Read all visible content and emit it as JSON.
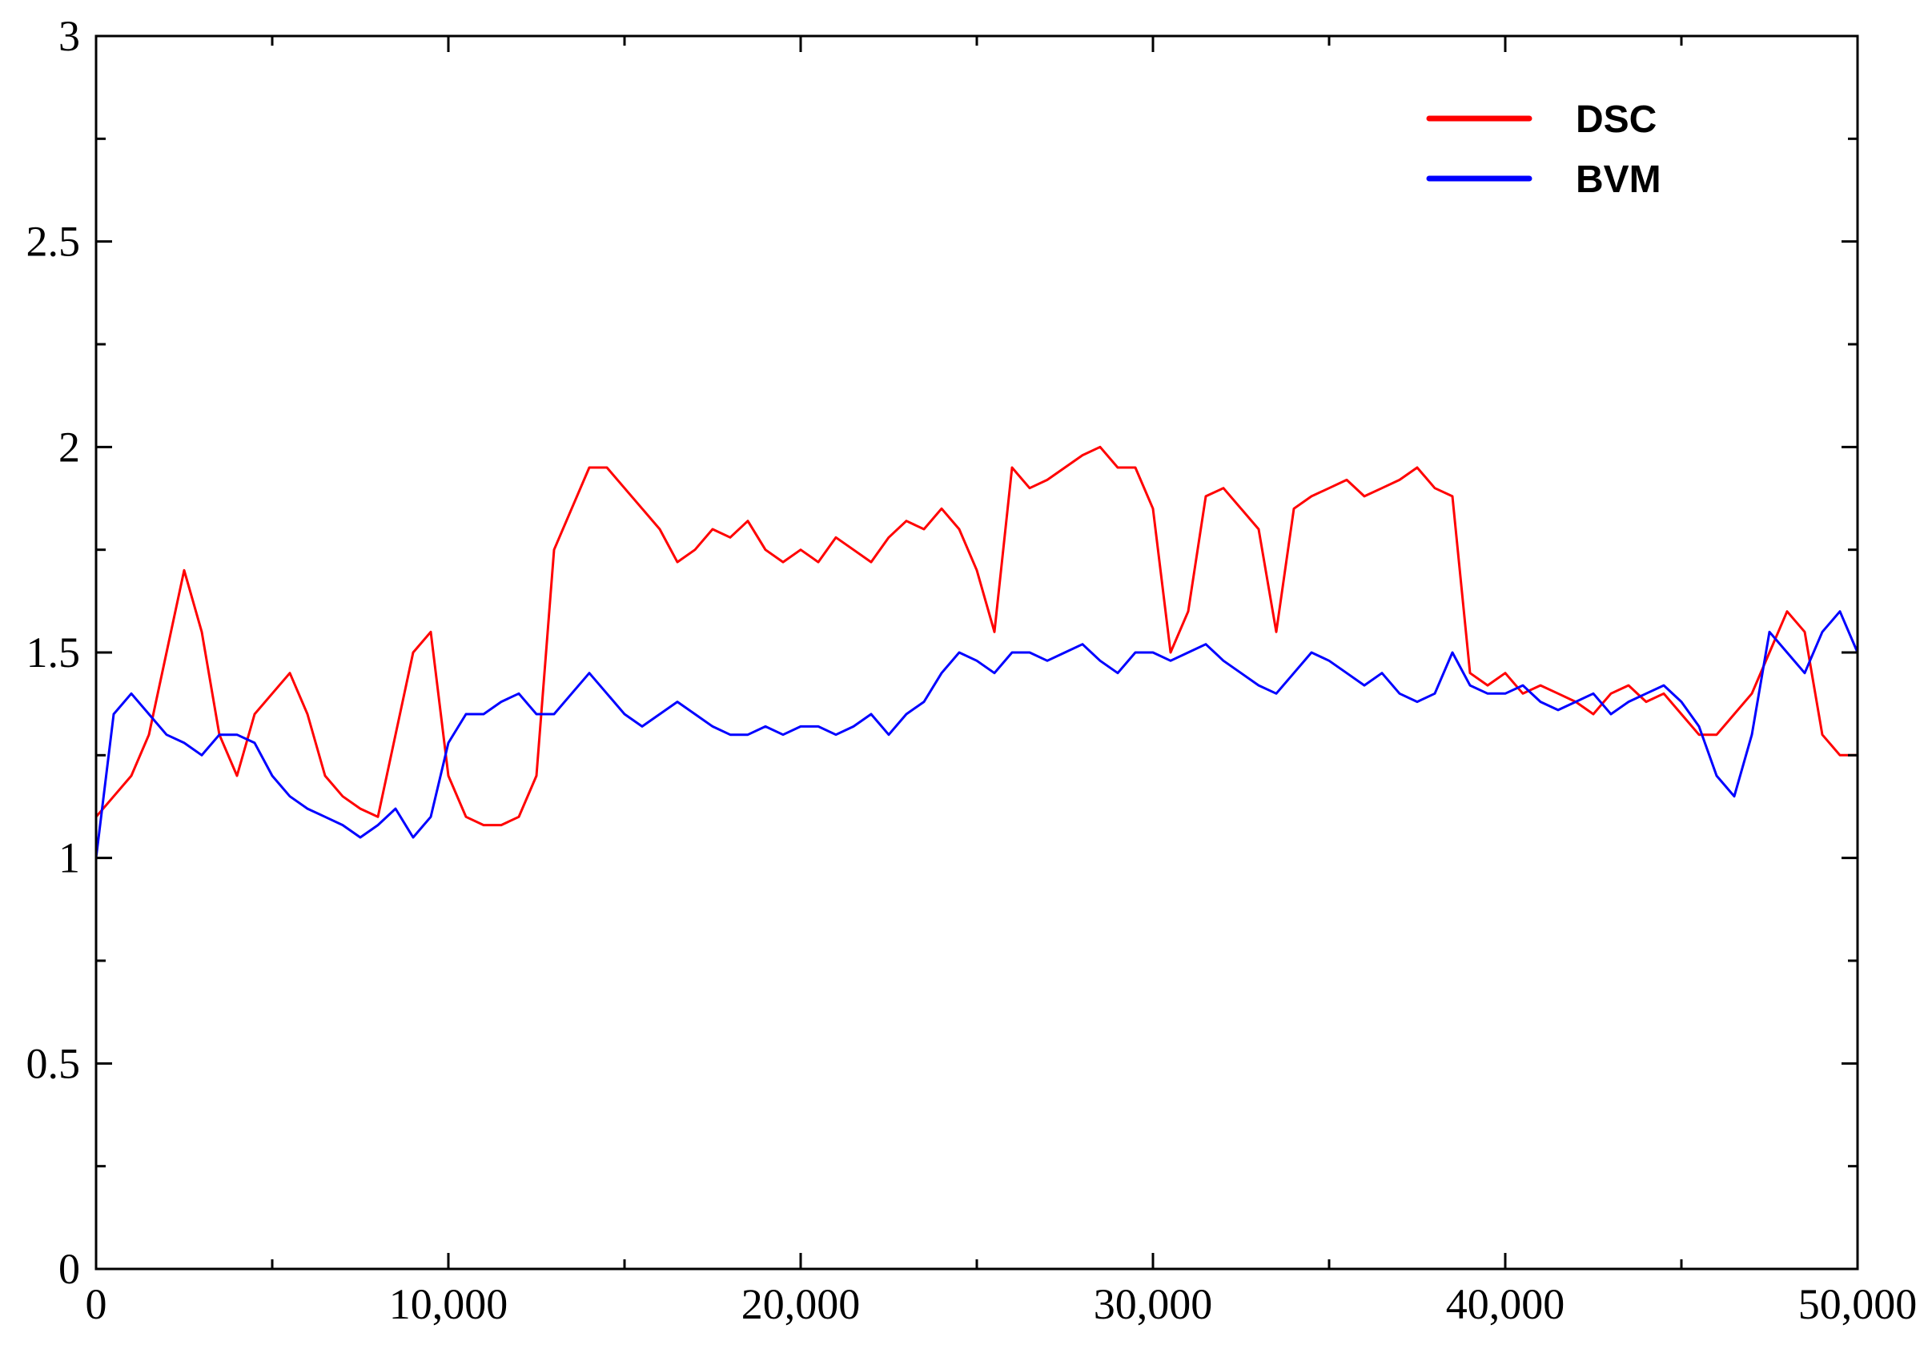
{
  "chart_data": {
    "type": "line",
    "title": "",
    "xlabel": "",
    "ylabel": "",
    "xlim": [
      0,
      50000
    ],
    "ylim": [
      0,
      3
    ],
    "x_ticks": [
      {
        "value": 0,
        "label": "0"
      },
      {
        "value": 10000,
        "label": "10,000"
      },
      {
        "value": 20000,
        "label": "20,000"
      },
      {
        "value": 30000,
        "label": "30,000"
      },
      {
        "value": 40000,
        "label": "40,000"
      },
      {
        "value": 50000,
        "label": "50,000"
      }
    ],
    "y_ticks": [
      {
        "value": 0,
        "label": "0"
      },
      {
        "value": 0.5,
        "label": "0.5"
      },
      {
        "value": 1,
        "label": "1"
      },
      {
        "value": 1.5,
        "label": "1.5"
      },
      {
        "value": 2,
        "label": "2"
      },
      {
        "value": 2.5,
        "label": "2.5"
      },
      {
        "value": 3,
        "label": "3"
      }
    ],
    "grid": false,
    "legend_position": "top-right",
    "series": [
      {
        "name": "DSC",
        "color": "#ff0000",
        "x": [
          0,
          500,
          1000,
          1500,
          2000,
          2500,
          3000,
          3500,
          4000,
          4500,
          5000,
          5500,
          6000,
          6500,
          7000,
          7500,
          8000,
          8500,
          9000,
          9500,
          10000,
          10500,
          11000,
          11500,
          12000,
          12500,
          13000,
          13500,
          14000,
          14500,
          15000,
          15500,
          16000,
          16500,
          17000,
          17500,
          18000,
          18500,
          19000,
          19500,
          20000,
          20500,
          21000,
          21500,
          22000,
          22500,
          23000,
          23500,
          24000,
          24500,
          25000,
          25500,
          26000,
          26500,
          27000,
          27500,
          28000,
          28500,
          29000,
          29500,
          30000,
          30500,
          31000,
          31500,
          32000,
          32500,
          33000,
          33500,
          34000,
          34500,
          35000,
          35500,
          36000,
          36500,
          37000,
          37500,
          38000,
          38500,
          39000,
          39500,
          40000,
          40500,
          41000,
          41500,
          42000,
          42500,
          43000,
          43500,
          44000,
          44500,
          45000,
          45500,
          46000,
          46500,
          47000,
          47500,
          48000,
          48500,
          49000,
          49500,
          50000
        ],
        "values": [
          1.1,
          1.15,
          1.2,
          1.3,
          1.5,
          1.7,
          1.55,
          1.3,
          1.2,
          1.35,
          1.4,
          1.45,
          1.35,
          1.2,
          1.15,
          1.12,
          1.1,
          1.3,
          1.5,
          1.55,
          1.2,
          1.1,
          1.08,
          1.08,
          1.1,
          1.2,
          1.75,
          1.85,
          1.95,
          1.95,
          1.9,
          1.85,
          1.8,
          1.72,
          1.75,
          1.8,
          1.78,
          1.82,
          1.75,
          1.72,
          1.75,
          1.72,
          1.78,
          1.75,
          1.72,
          1.78,
          1.82,
          1.8,
          1.85,
          1.8,
          1.7,
          1.55,
          1.95,
          1.9,
          1.92,
          1.95,
          1.98,
          2.0,
          1.95,
          1.95,
          1.85,
          1.5,
          1.6,
          1.88,
          1.9,
          1.85,
          1.8,
          1.55,
          1.85,
          1.88,
          1.9,
          1.92,
          1.88,
          1.9,
          1.92,
          1.95,
          1.9,
          1.88,
          1.45,
          1.42,
          1.45,
          1.4,
          1.42,
          1.4,
          1.38,
          1.35,
          1.4,
          1.42,
          1.38,
          1.4,
          1.35,
          1.3,
          1.3,
          1.35,
          1.4,
          1.5,
          1.6,
          1.55,
          1.3,
          1.25,
          1.25
        ]
      },
      {
        "name": "BVM",
        "color": "#0000ff",
        "x": [
          0,
          500,
          1000,
          1500,
          2000,
          2500,
          3000,
          3500,
          4000,
          4500,
          5000,
          5500,
          6000,
          6500,
          7000,
          7500,
          8000,
          8500,
          9000,
          9500,
          10000,
          10500,
          11000,
          11500,
          12000,
          12500,
          13000,
          13500,
          14000,
          14500,
          15000,
          15500,
          16000,
          16500,
          17000,
          17500,
          18000,
          18500,
          19000,
          19500,
          20000,
          20500,
          21000,
          21500,
          22000,
          22500,
          23000,
          23500,
          24000,
          24500,
          25000,
          25500,
          26000,
          26500,
          27000,
          27500,
          28000,
          28500,
          29000,
          29500,
          30000,
          30500,
          31000,
          31500,
          32000,
          32500,
          33000,
          33500,
          34000,
          34500,
          35000,
          35500,
          36000,
          36500,
          37000,
          37500,
          38000,
          38500,
          39000,
          39500,
          40000,
          40500,
          41000,
          41500,
          42000,
          42500,
          43000,
          43500,
          44000,
          44500,
          45000,
          45500,
          46000,
          46500,
          47000,
          47500,
          48000,
          48500,
          49000,
          49500,
          50000
        ],
        "values": [
          1.0,
          1.35,
          1.4,
          1.35,
          1.3,
          1.28,
          1.25,
          1.3,
          1.3,
          1.28,
          1.2,
          1.15,
          1.12,
          1.1,
          1.08,
          1.05,
          1.08,
          1.12,
          1.05,
          1.1,
          1.28,
          1.35,
          1.35,
          1.38,
          1.4,
          1.35,
          1.35,
          1.4,
          1.45,
          1.4,
          1.35,
          1.32,
          1.35,
          1.38,
          1.35,
          1.32,
          1.3,
          1.3,
          1.32,
          1.3,
          1.32,
          1.32,
          1.3,
          1.32,
          1.35,
          1.3,
          1.35,
          1.38,
          1.45,
          1.5,
          1.48,
          1.45,
          1.5,
          1.5,
          1.48,
          1.5,
          1.52,
          1.48,
          1.45,
          1.5,
          1.5,
          1.48,
          1.5,
          1.52,
          1.48,
          1.45,
          1.42,
          1.4,
          1.45,
          1.5,
          1.48,
          1.45,
          1.42,
          1.45,
          1.4,
          1.38,
          1.4,
          1.5,
          1.42,
          1.4,
          1.4,
          1.42,
          1.38,
          1.36,
          1.38,
          1.4,
          1.35,
          1.38,
          1.4,
          1.42,
          1.38,
          1.32,
          1.2,
          1.15,
          1.3,
          1.55,
          1.5,
          1.45,
          1.55,
          1.6,
          1.5
        ]
      }
    ]
  }
}
